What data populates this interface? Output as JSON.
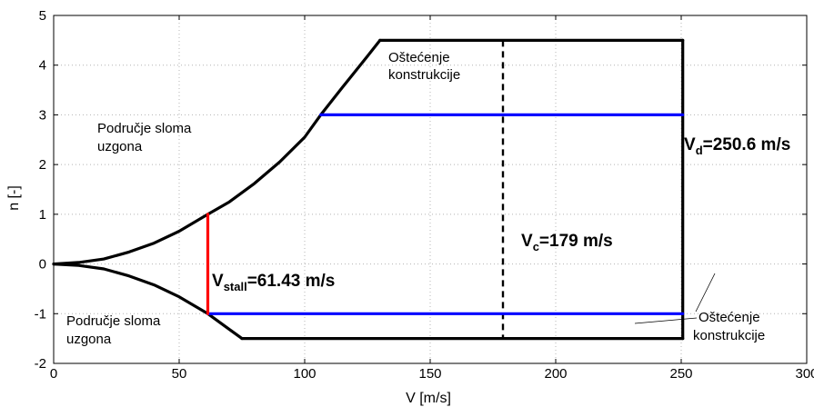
{
  "chart_data": {
    "type": "line",
    "title": "",
    "xlabel": "V [m/s]",
    "ylabel": "n [-]",
    "xlim": [
      0,
      300
    ],
    "ylim": [
      -2,
      5
    ],
    "grid": true,
    "x_ticks": [
      0,
      50,
      100,
      150,
      200,
      250,
      300
    ],
    "x_tick_labels": [
      "0",
      "50",
      "100",
      "150",
      "200",
      "250",
      "300"
    ],
    "y_ticks": [
      -2,
      -1,
      0,
      1,
      2,
      3,
      4,
      5
    ],
    "y_tick_labels": [
      "-2",
      "-1",
      "0",
      "1",
      "2",
      "3",
      "4",
      "5"
    ],
    "series": [
      {
        "key": "upper_stall",
        "color": "#000000",
        "style": "solid",
        "x": [
          0,
          10,
          20,
          30,
          40,
          50,
          61.43,
          70,
          80,
          90,
          100,
          106.4,
          115,
          125,
          130
        ],
        "y": [
          0,
          0.03,
          0.1,
          0.24,
          0.42,
          0.66,
          1.0,
          1.25,
          1.62,
          2.05,
          2.55,
          3.0,
          3.55,
          4.18,
          4.5
        ]
      },
      {
        "key": "top_limit",
        "color": "#000000",
        "style": "solid",
        "x": [
          130,
          250.6
        ],
        "y": [
          4.5,
          4.5
        ]
      },
      {
        "key": "right_limit",
        "color": "#000000",
        "style": "solid",
        "x": [
          250.6,
          250.6
        ],
        "y": [
          4.5,
          -1.5
        ]
      },
      {
        "key": "bottom_limit",
        "color": "#000000",
        "style": "solid",
        "x": [
          250.6,
          75
        ],
        "y": [
          -1.5,
          -1.5
        ]
      },
      {
        "key": "lower_stall",
        "color": "#000000",
        "style": "solid",
        "x": [
          75,
          61.43,
          50,
          40,
          30,
          20,
          10,
          0
        ],
        "y": [
          -1.5,
          -1.0,
          -0.66,
          -0.42,
          -0.24,
          -0.1,
          -0.03,
          0
        ]
      },
      {
        "key": "vc_line",
        "color": "#000000",
        "style": "dashed",
        "x": [
          179,
          179
        ],
        "y": [
          4.5,
          -1.5
        ]
      },
      {
        "key": "blue_top",
        "color": "#0000ff",
        "style": "solid",
        "x": [
          106.4,
          250.6
        ],
        "y": [
          3,
          3
        ]
      },
      {
        "key": "blue_bottom",
        "color": "#0000ff",
        "style": "solid",
        "x": [
          61.43,
          250.6
        ],
        "y": [
          -1,
          -1
        ]
      },
      {
        "key": "vstall_line",
        "color": "#ff0000",
        "style": "solid",
        "x": [
          61.43,
          61.43
        ],
        "y": [
          1,
          -1
        ]
      }
    ],
    "annotations": {
      "area_upper_left": [
        "Područje sloma",
        "uzgona"
      ],
      "area_lower_left": [
        "Područje sloma",
        "uzgona"
      ],
      "damage_top": [
        "Oštećenje",
        "konstrukcije"
      ],
      "damage_bottom": [
        "Oštećenje",
        "konstrukcije"
      ],
      "vd": {
        "main": "V",
        "sub": "d",
        "rest": "=250.6 m/s"
      },
      "vc": {
        "main": "V",
        "sub": "c",
        "rest": "=179 m/s"
      },
      "vstall": {
        "main": "V",
        "sub": "stall",
        "rest": "=61.43 m/s"
      }
    }
  }
}
